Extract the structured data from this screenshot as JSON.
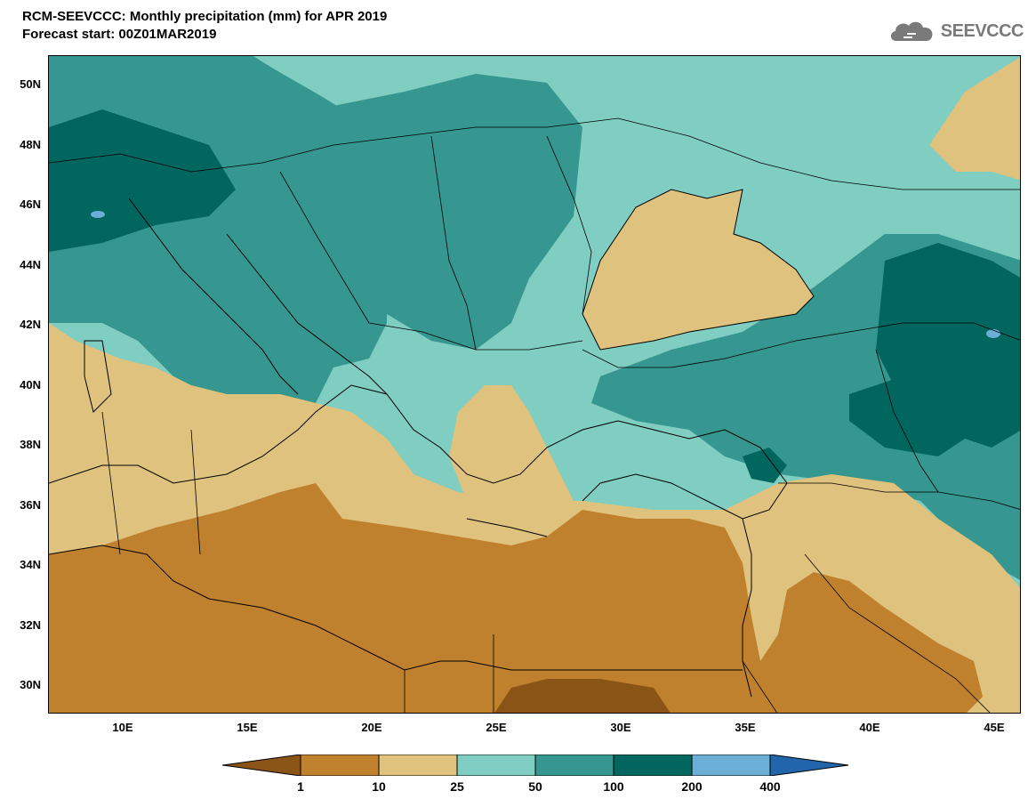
{
  "header": {
    "title": "RCM-SEEVCCC: Monthly precipitation (mm) for APR 2019",
    "subtitle": "Forecast start: 00Z01MAR2019",
    "logo_text": "SEEVCCC"
  },
  "map": {
    "lat_ticks": [
      "50N",
      "48N",
      "46N",
      "44N",
      "42N",
      "40N",
      "38N",
      "36N",
      "34N",
      "32N",
      "30N"
    ],
    "lon_ticks": [
      "10E",
      "15E",
      "20E",
      "25E",
      "30E",
      "35E",
      "40E",
      "45E"
    ],
    "colors": {
      "c1": "#8b5417",
      "c10": "#bf812d",
      "c25": "#dfc27d",
      "c50": "#80cdc1",
      "c100": "#35978f",
      "c200": "#01665e",
      "c400": "#6baed6",
      "cmax": "#2166ac"
    }
  },
  "legend": {
    "labels": [
      "1",
      "10",
      "25",
      "50",
      "100",
      "200",
      "400"
    ]
  }
}
